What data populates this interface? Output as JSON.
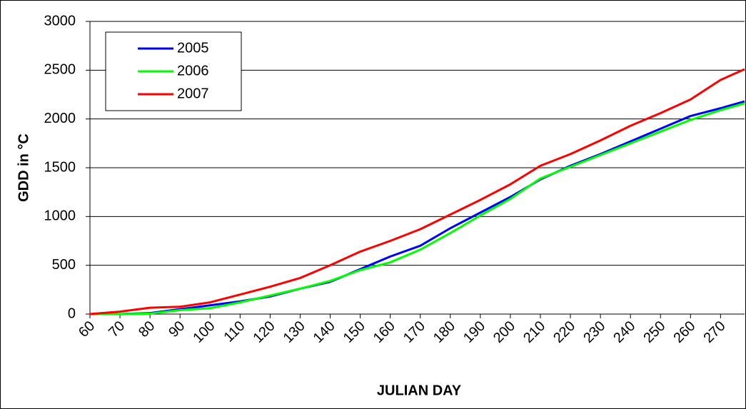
{
  "chart_data": {
    "type": "line",
    "x_label": "JULIAN DAY",
    "y_label": "GDD in °C",
    "x": [
      60,
      70,
      80,
      90,
      100,
      110,
      120,
      130,
      140,
      150,
      160,
      170,
      180,
      190,
      200,
      210,
      220,
      230,
      240,
      250,
      260,
      270,
      278
    ],
    "series": [
      {
        "name": "2005",
        "color": "#0000ff",
        "values": [
          0,
          0,
          10,
          50,
          90,
          130,
          180,
          260,
          330,
          460,
          590,
          700,
          880,
          1040,
          1200,
          1380,
          1520,
          1640,
          1770,
          1900,
          2030,
          2110,
          2180
        ]
      },
      {
        "name": "2006",
        "color": "#00ff00",
        "values": [
          0,
          0,
          5,
          40,
          60,
          120,
          190,
          260,
          340,
          450,
          530,
          660,
          830,
          1010,
          1180,
          1390,
          1510,
          1630,
          1750,
          1870,
          1990,
          2090,
          2160
        ]
      },
      {
        "name": "2007",
        "color": "#ff0000",
        "values": [
          0,
          25,
          65,
          75,
          120,
          200,
          280,
          370,
          500,
          640,
          750,
          870,
          1020,
          1170,
          1330,
          1520,
          1640,
          1780,
          1930,
          2060,
          2200,
          2400,
          2510
        ]
      }
    ],
    "xlim": [
      60,
      278
    ],
    "xticks": [
      60,
      70,
      80,
      90,
      100,
      110,
      120,
      130,
      140,
      150,
      160,
      170,
      180,
      190,
      200,
      210,
      220,
      230,
      240,
      250,
      260,
      270
    ],
    "ylim": [
      0,
      3000
    ],
    "yticks": [
      0,
      500,
      1000,
      1500,
      2000,
      2500,
      3000
    ],
    "grid": true,
    "legend": "top-left"
  }
}
